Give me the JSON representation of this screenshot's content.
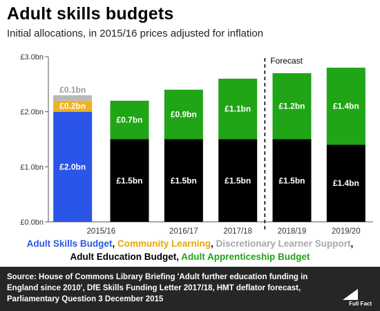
{
  "title": "Adult skills budgets",
  "subtitle": "Initial allocations, in 2015/16 prices adjusted for inflation",
  "chart_data": {
    "type": "bar",
    "stacked": true,
    "categories": [
      "2015/16",
      "2015/16",
      "2016/17",
      "2017/18",
      "2018/19",
      "2019/20"
    ],
    "forecast_label": "Forecast",
    "forecast_from_index": 4,
    "ylim": [
      0,
      3.0
    ],
    "yticks": [
      {
        "value": 0.0,
        "label": "£0.0bn"
      },
      {
        "value": 1.0,
        "label": "£1.0bn"
      },
      {
        "value": 2.0,
        "label": "£2.0bn"
      },
      {
        "value": 3.0,
        "label": "£3.0bn"
      }
    ],
    "grid": false,
    "bars": [
      {
        "segments": [
          {
            "series": "Adult Skills Budget",
            "value": 2.0,
            "label": "£2.0bn"
          },
          {
            "series": "Community Learning",
            "value": 0.2,
            "label": "£0.2bn"
          },
          {
            "series": "Discretionary Learner Support",
            "value": 0.1,
            "label": "£0.1bn"
          }
        ]
      },
      {
        "segments": [
          {
            "series": "Adult Education Budget",
            "value": 1.5,
            "label": "£1.5bn"
          },
          {
            "series": "Adult Apprenticeship Budget",
            "value": 0.7,
            "label": "£0.7bn"
          }
        ]
      },
      {
        "segments": [
          {
            "series": "Adult Education Budget",
            "value": 1.5,
            "label": "£1.5bn"
          },
          {
            "series": "Adult Apprenticeship Budget",
            "value": 0.9,
            "label": "£0.9bn"
          }
        ]
      },
      {
        "segments": [
          {
            "series": "Adult Education Budget",
            "value": 1.5,
            "label": "£1.5bn"
          },
          {
            "series": "Adult Apprenticeship Budget",
            "value": 1.1,
            "label": "£1.1bn"
          }
        ]
      },
      {
        "segments": [
          {
            "series": "Adult Education Budget",
            "value": 1.5,
            "label": "£1.5bn"
          },
          {
            "series": "Adult Apprenticeship Budget",
            "value": 1.2,
            "label": "£1.2bn"
          }
        ]
      },
      {
        "segments": [
          {
            "series": "Adult Education Budget",
            "value": 1.4,
            "label": "£1.4bn"
          },
          {
            "series": "Adult Apprenticeship Budget",
            "value": 1.4,
            "label": "£1.4bn"
          }
        ]
      }
    ],
    "series_colors": {
      "Adult Skills Budget": "#2b55e6",
      "Community Learning": "#f0b21e",
      "Discretionary Learner Support": "#b9b9b9",
      "Adult Education Budget": "#000000",
      "Adult Apprenticeship Budget": "#1fa516"
    }
  },
  "legend": {
    "line1": [
      {
        "text": "Adult Skills Budget",
        "color": "#2b55e6"
      },
      {
        "text": ", ",
        "color": "#000000"
      },
      {
        "text": "Community Learning",
        "color": "#e6a800"
      },
      {
        "text": ", ",
        "color": "#000000"
      },
      {
        "text": "Discretionary Learner Support",
        "color": "#a8a8a8"
      },
      {
        "text": ",",
        "color": "#000000"
      }
    ],
    "line2": [
      {
        "text": "Adult Education Budget",
        "color": "#000000"
      },
      {
        "text": ", ",
        "color": "#000000"
      },
      {
        "text": "Adult Apprenticeship Budget",
        "color": "#1fa516"
      }
    ]
  },
  "footer": {
    "source_label": "Source:",
    "source_text": "House of Commons Library Briefing 'Adult further education funding in England since 2010', DfE Skills Funding Letter 2017/18, HMT deflator forecast, Parliamentary Question 3 December 2015",
    "logo_text": "Full Fact",
    "logo_icon": "full-fact-logo-icon"
  }
}
